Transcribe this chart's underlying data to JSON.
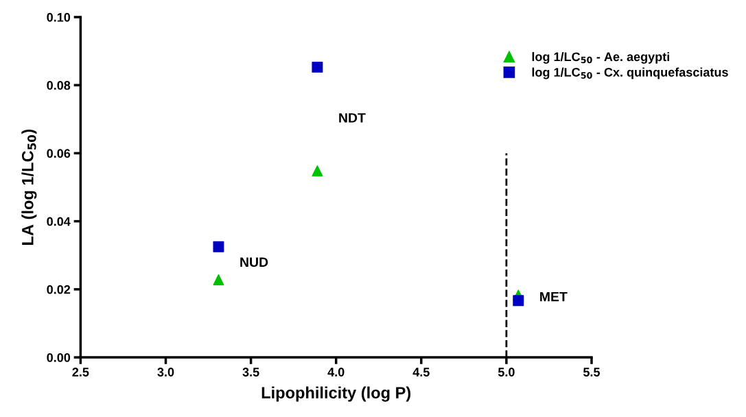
{
  "chart_data": {
    "type": "scatter",
    "xlabel": "Lipophilicity (log P)",
    "ylabel": "LA (log 1/LC$_{50}$)",
    "xlim": [
      2.5,
      5.5
    ],
    "xticks": [
      2.5,
      {
        "value": 3,
        "label": "3.0"
      },
      3.5,
      {
        "value": 4,
        "label": "4.0"
      },
      4.5,
      {
        "value": 5,
        "label": "5.0"
      },
      5.5
    ],
    "ylim": [
      0,
      0.1
    ],
    "yticks": [
      {
        "value": 0,
        "label": "0.00"
      },
      {
        "value": 0.02,
        "label": "0.02"
      },
      {
        "value": 0.04,
        "label": "0.04"
      },
      {
        "value": 0.06,
        "label": "0.06"
      },
      {
        "value": 0.08,
        "label": "0.08"
      },
      {
        "value": 0.1,
        "label": "0.10"
      }
    ],
    "x": [
      3.31,
      3.89,
      5.07
    ],
    "series": [
      {
        "name": "log 1/LC$_{50}$ - Ae. aegypti",
        "color": "#00c000",
        "marker": "triangle",
        "values": [
          0.0228,
          0.0548,
          0.0183
        ]
      },
      {
        "name": "log 1/LC$_{50}$ - Cx. quinquefasciatus",
        "color": "#0000c0",
        "marker": "square",
        "values": [
          0.0325,
          0.0853,
          0.0167
        ]
      },
      {
        "type": "line",
        "color": "#000000",
        "line_style": "dashed",
        "marker": "none",
        "x": [
          5.0,
          5.0
        ],
        "values": [
          0,
          0.06
        ]
      }
    ],
    "annotations": [
      "NUD",
      "NDT",
      "MET"
    ],
    "legend": "top right",
    "grid": false
  }
}
